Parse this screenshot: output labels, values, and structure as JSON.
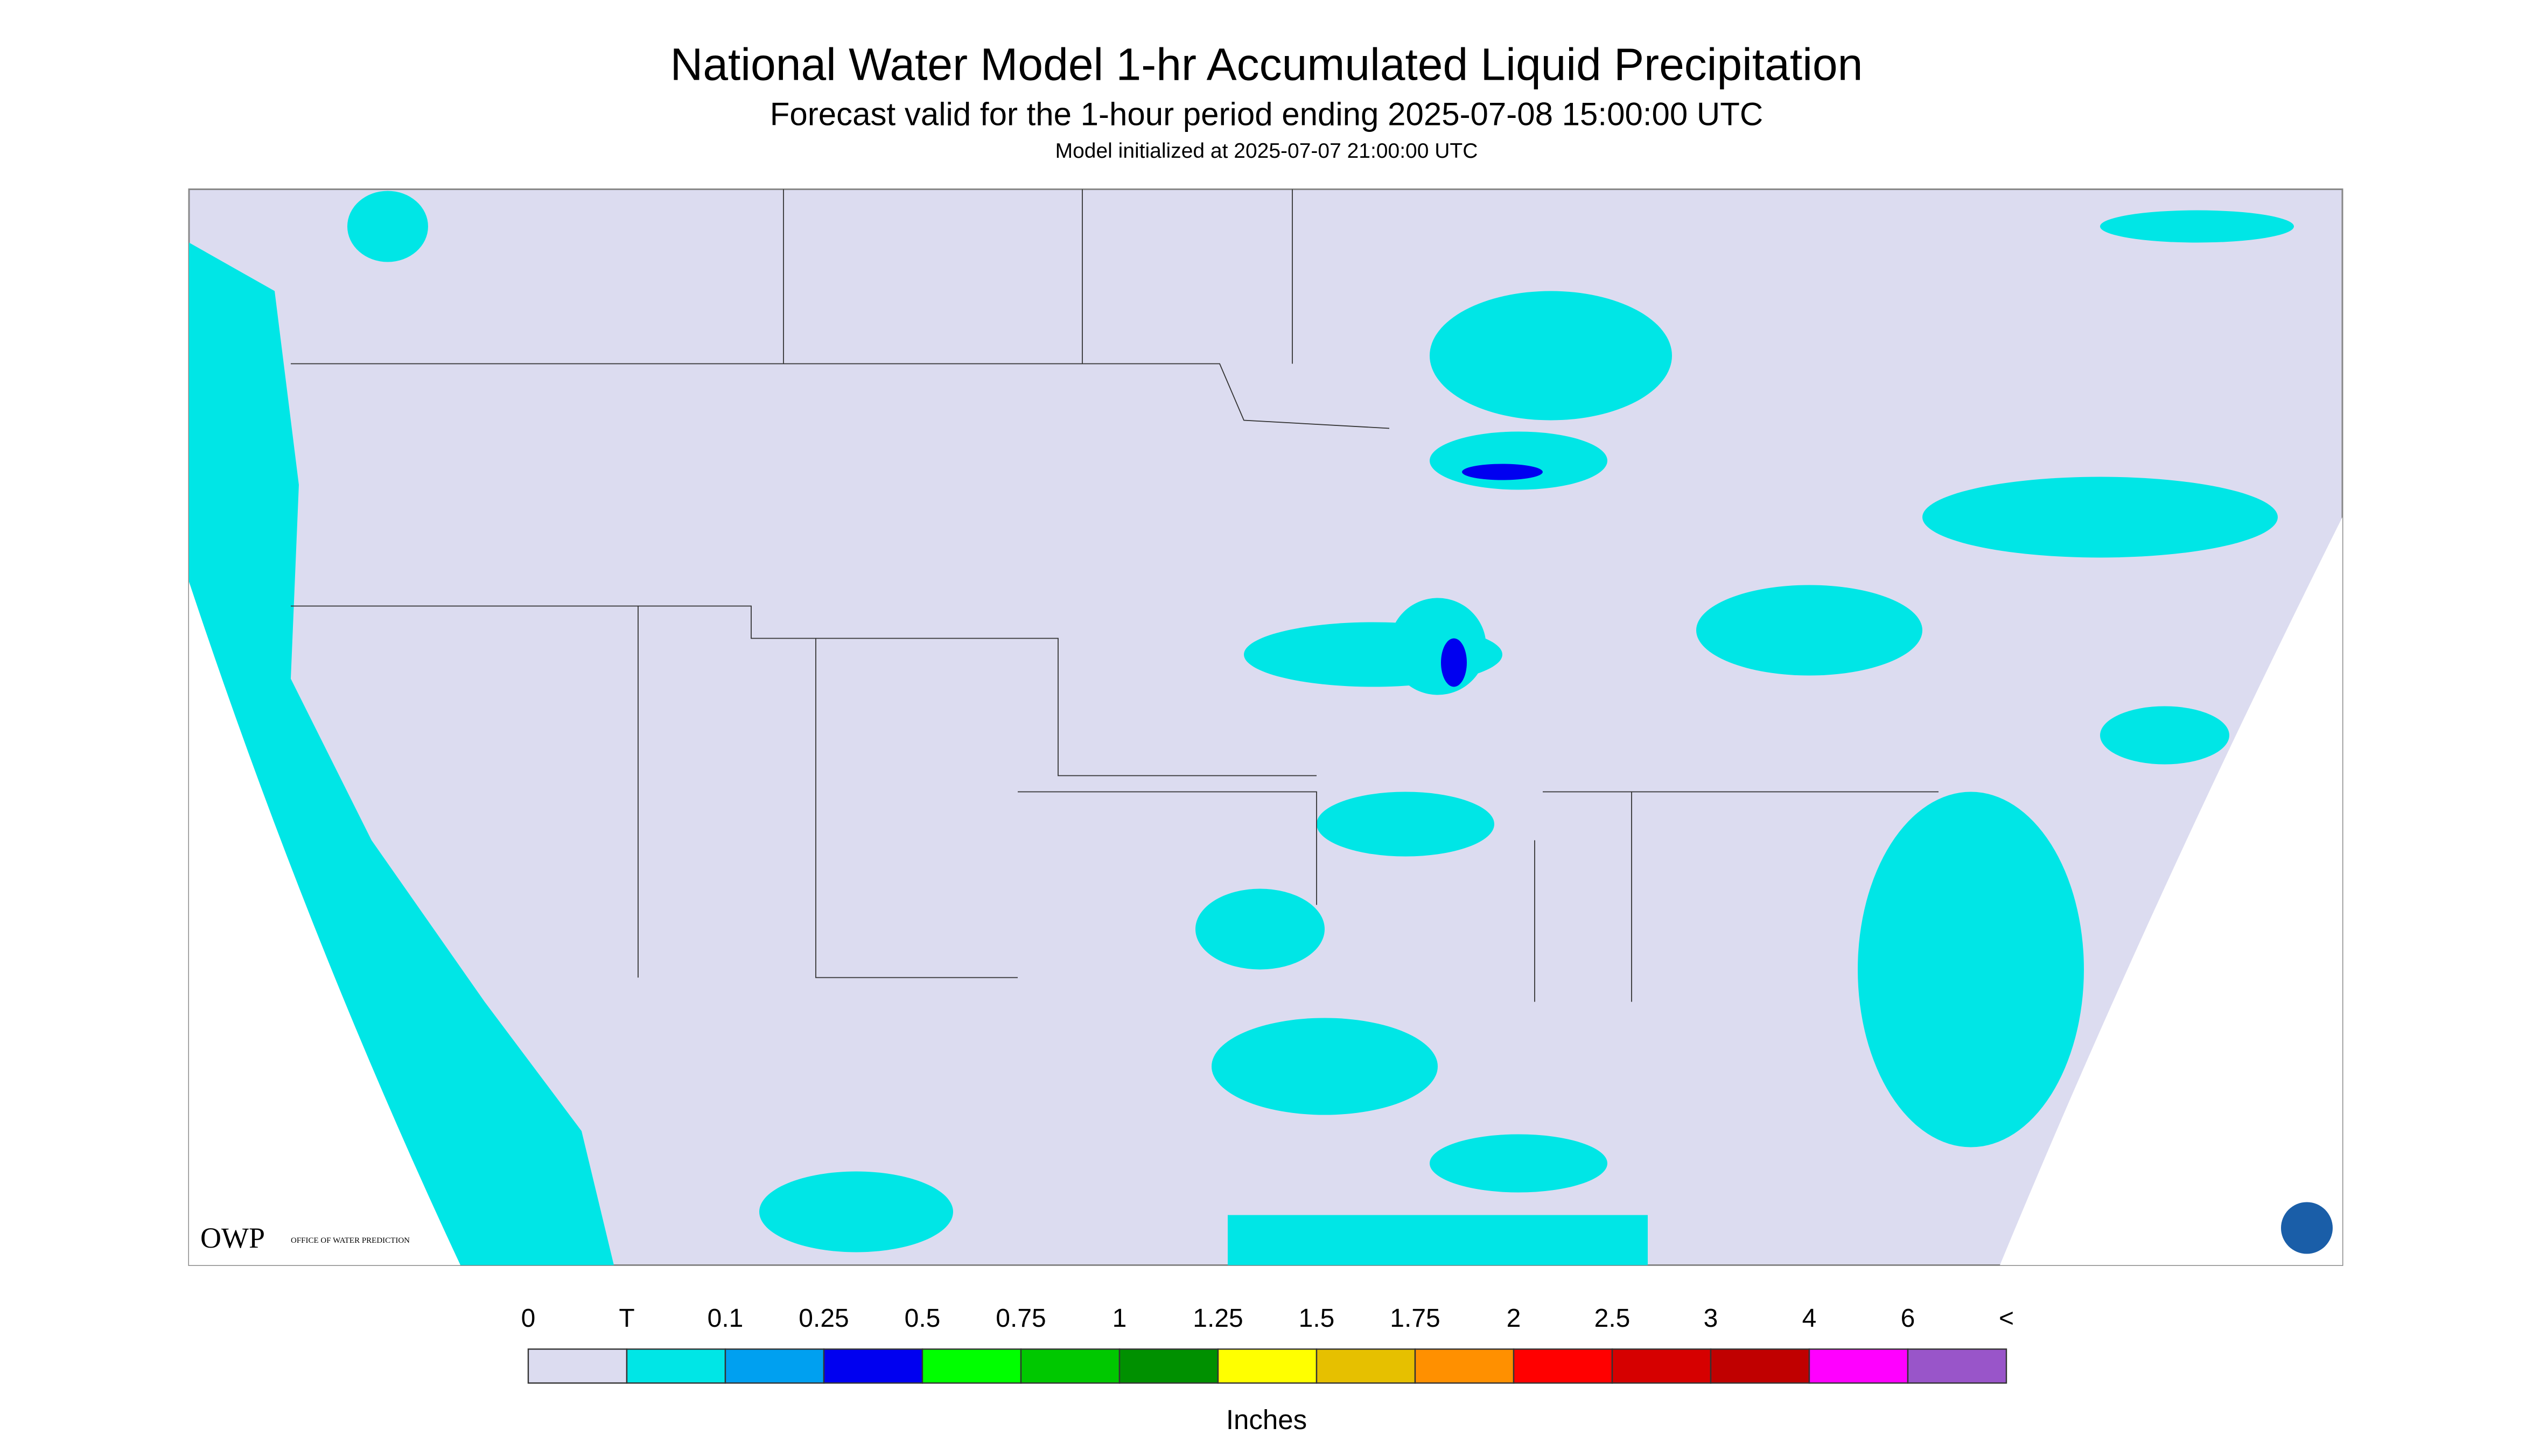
{
  "header": {
    "title": "National Water Model 1-hr Accumulated Liquid Precipitation",
    "subtitle": "Forecast valid for the 1-hour period ending 2025-07-08 15:00:00 UTC",
    "init": "Model initialized at 2025-07-07 21:00:00 UTC"
  },
  "logo": {
    "acronym": "OWP",
    "name": "OFFICE OF WATER PREDICTION"
  },
  "legend": {
    "labels": [
      "0",
      "T",
      "0.1",
      "0.25",
      "0.5",
      "0.75",
      "1",
      "1.25",
      "1.5",
      "1.75",
      "2",
      "2.5",
      "3",
      "4",
      "6",
      "<"
    ],
    "colors": [
      "#dcdcf0",
      "#00e6e6",
      "#00a0f0",
      "#0000f0",
      "#00ff00",
      "#00c800",
      "#009000",
      "#ffff00",
      "#e6c000",
      "#ff9000",
      "#ff0000",
      "#d60000",
      "#c00000",
      "#ff00ff",
      "#9955c9"
    ],
    "units": "Inches"
  }
}
